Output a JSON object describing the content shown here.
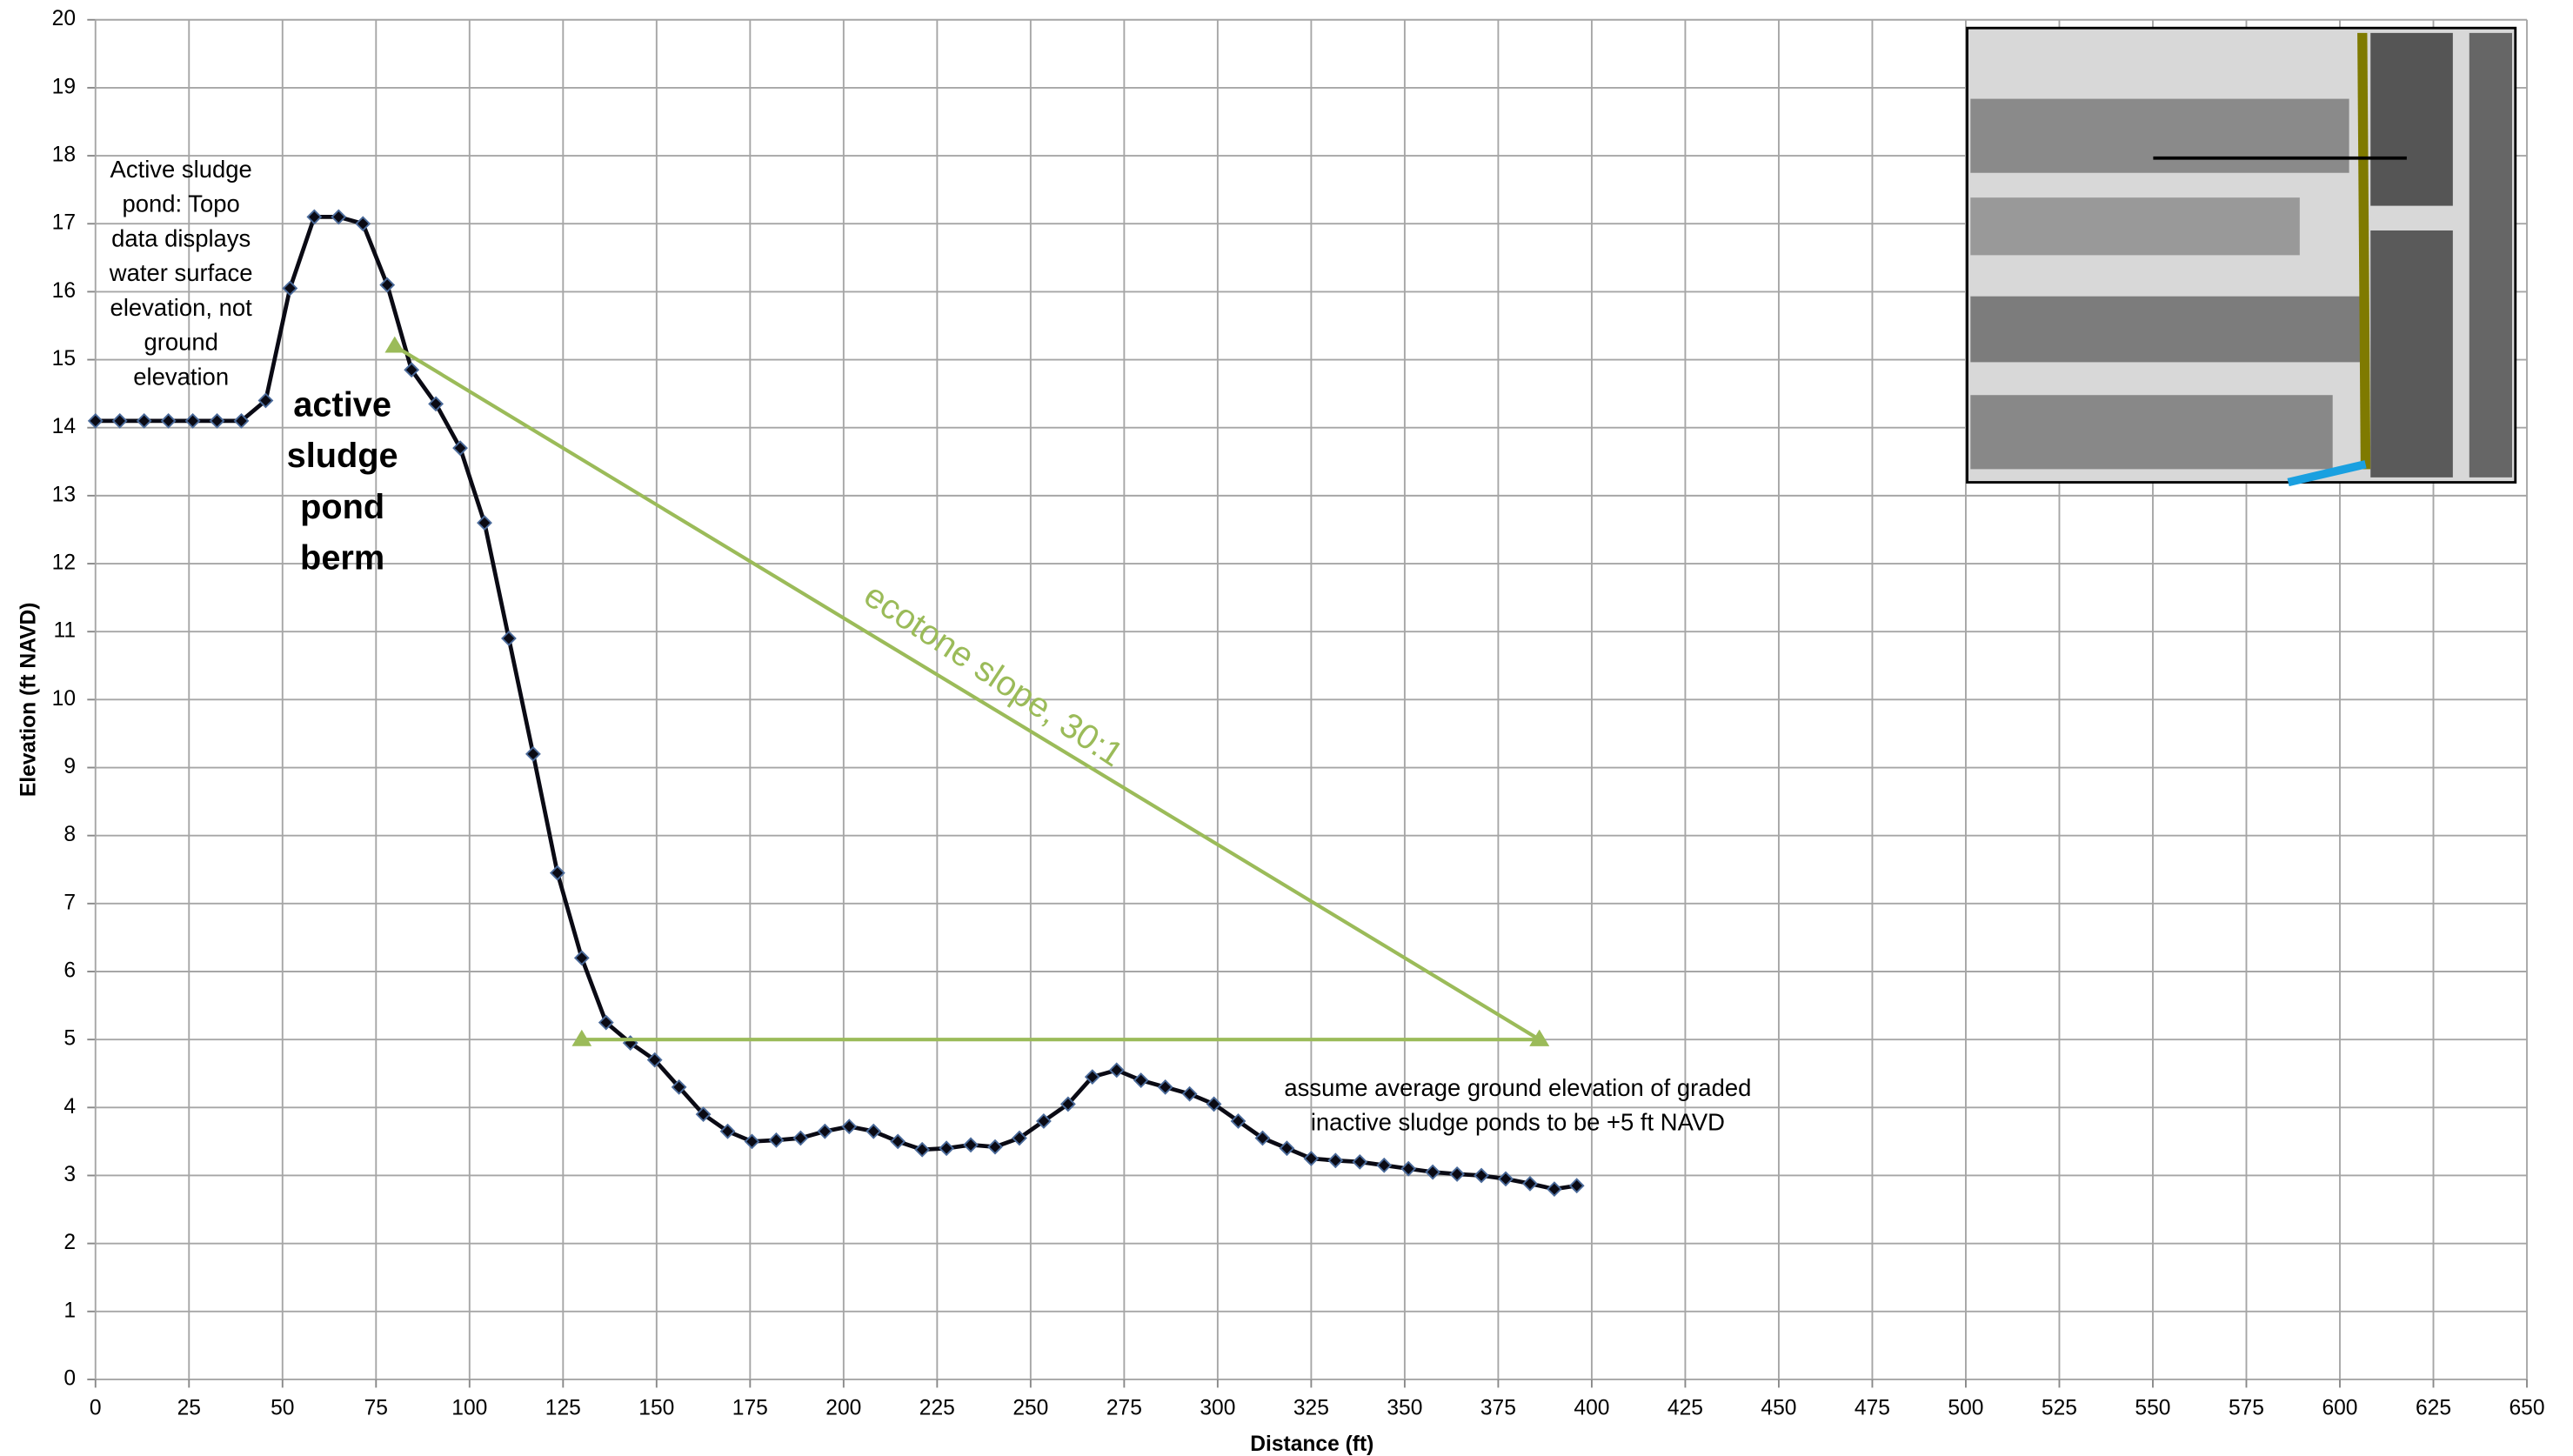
{
  "chart_data": {
    "type": "line",
    "xlabel": "Distance (ft)",
    "ylabel": "Elevation (ft NAVD)",
    "xlim": [
      0,
      650
    ],
    "xticks": [
      0,
      25,
      50,
      75,
      100,
      125,
      150,
      175,
      200,
      225,
      250,
      275,
      300,
      325,
      350,
      375,
      400,
      425,
      450,
      475,
      500,
      525,
      550,
      575,
      600,
      625,
      650
    ],
    "ylim": [
      0,
      20
    ],
    "yticks": [
      0,
      1,
      2,
      3,
      4,
      5,
      6,
      7,
      8,
      9,
      10,
      11,
      12,
      13,
      14,
      15,
      16,
      17,
      18,
      19,
      20
    ],
    "grid": true,
    "series": [
      {
        "color": "#0a0a14",
        "marker": "diamond",
        "x": [
          0,
          6.5,
          13,
          19.5,
          26,
          32.5,
          39,
          45.5,
          52,
          58.5,
          65,
          71.5,
          78,
          84.5,
          91,
          97.5,
          104,
          110.5,
          117,
          123.5,
          130,
          136.5,
          143,
          149.5,
          156,
          162.5,
          169,
          175.5,
          182,
          188.5,
          195,
          201.5,
          208,
          214.5,
          221,
          227.5,
          234,
          240.5,
          247,
          253.5,
          260,
          266.5,
          273,
          279.5,
          286,
          292.5,
          299,
          305.5,
          312,
          318.5,
          325,
          331.5,
          338,
          344.5,
          351,
          357.5,
          364,
          370.5,
          377,
          383.5,
          390,
          396
        ],
        "values": [
          14.1,
          14.1,
          14.1,
          14.1,
          14.1,
          14.1,
          14.1,
          14.4,
          16.05,
          17.1,
          17.1,
          17.0,
          16.1,
          14.85,
          14.35,
          13.7,
          12.6,
          10.9,
          9.2,
          7.45,
          6.2,
          5.25,
          4.95,
          4.7,
          4.3,
          3.9,
          3.65,
          3.5,
          3.52,
          3.55,
          3.65,
          3.72,
          3.65,
          3.5,
          3.38,
          3.4,
          3.45,
          3.42,
          3.55,
          3.8,
          4.05,
          4.45,
          4.55,
          4.4,
          4.3,
          4.2,
          4.05,
          3.8,
          3.55,
          3.4,
          3.25,
          3.22,
          3.2,
          3.15,
          3.1,
          3.05,
          3.02,
          3.0,
          2.95,
          2.88,
          2.8,
          2.85
        ]
      },
      {
        "color": "#9bbb59",
        "marker": "triangle",
        "x": [
          80,
          386
        ],
        "values": [
          15.2,
          5
        ]
      },
      {
        "color": "#9bbb59",
        "marker": "triangle",
        "x": [
          130,
          386
        ],
        "values": [
          5,
          5
        ]
      }
    ],
    "annotations": [
      {
        "lines": [
          "Active sludge",
          "pond: Topo",
          "data displays",
          "water surface",
          "elevation, not",
          "ground",
          "elevation"
        ]
      },
      {
        "lines": [
          "active",
          "sludge",
          "pond",
          "berm"
        ]
      },
      {
        "lines": [
          "ecotone slope, 30:1"
        ]
      },
      {
        "lines": [
          "assume average ground elevation of graded",
          "inactive sludge  ponds to be +5 ft NAVD"
        ]
      }
    ]
  }
}
